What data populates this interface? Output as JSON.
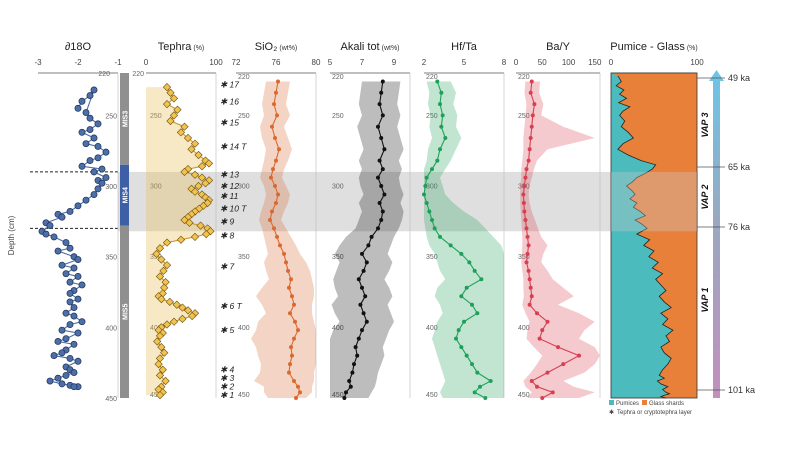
{
  "depth_axis": {
    "label": "Depth (cm)",
    "range": [
      220,
      450
    ],
    "ticks": [
      250,
      300,
      350,
      400,
      450
    ],
    "top_label": "220"
  },
  "mis": [
    {
      "label": "MIS3",
      "range": [
        220,
        285
      ],
      "color": "#8f8f8f"
    },
    {
      "label": "MIS4",
      "range": [
        285,
        328
      ],
      "color": "#3d5fa6"
    },
    {
      "label": "MIS5",
      "range": [
        328,
        450
      ],
      "color": "#8f8f8f"
    }
  ],
  "shaded_band": [
    290,
    332
  ],
  "dashed_lines": [
    290,
    330
  ],
  "chart_data": [
    {
      "type": "line",
      "panel": "d18O",
      "title": "∂18O",
      "xlim": [
        -3,
        -1
      ],
      "xticks": [
        "-3",
        "-2",
        "-1"
      ],
      "color": "#4c6fa8",
      "x": [
        -2.0,
        -1.9,
        -1.7,
        -1.6,
        -1.8,
        -1.7,
        -1.5,
        -1.7,
        -1.9,
        -1.6,
        -1.8,
        -1.5,
        -1.3,
        -1.5,
        -1.7,
        -1.9,
        -1.4,
        -1.6,
        -1.3,
        -1.5,
        -1.4,
        -1.5,
        -1.6,
        -1.8,
        -2.0,
        -2.2,
        -2.5,
        -2.4,
        -2.8,
        -2.7,
        -2.9,
        -2.8,
        -2.6,
        -2.3,
        -2.2,
        -2.5,
        -2.1,
        -2.0,
        -2.4,
        -2.1,
        -2.3,
        -2.0,
        -2.2,
        -1.9,
        -2.1,
        -2.2,
        -2.0,
        -2.2,
        -2.1,
        -2.3,
        -2.1,
        -1.9,
        -2.2,
        -2.4,
        -2.0,
        -2.3,
        -2.5,
        -2.1,
        -2.3,
        -2.4,
        -2.6,
        -2.2,
        -2.0,
        -2.3,
        -2.2,
        -2.1,
        -2.3,
        -2.5,
        -2.7,
        -2.4,
        -2.2,
        -2.0,
        -2.1
      ],
      "y": [
        245,
        240,
        236,
        232,
        248,
        252,
        256,
        260,
        262,
        266,
        270,
        272,
        276,
        280,
        282,
        286,
        288,
        290,
        294,
        296,
        298,
        302,
        306,
        310,
        314,
        318,
        320,
        322,
        326,
        328,
        332,
        334,
        336,
        340,
        344,
        346,
        350,
        352,
        356,
        358,
        362,
        364,
        368,
        370,
        374,
        376,
        380,
        382,
        386,
        390,
        392,
        396,
        398,
        402,
        404,
        408,
        410,
        412,
        416,
        418,
        420,
        422,
        424,
        428,
        430,
        432,
        434,
        436,
        438,
        440,
        441,
        442,
        442
      ]
    },
    {
      "type": "line",
      "panel": "tephra",
      "title": "Tephra",
      "unit": "(%)",
      "xlim": [
        0,
        100
      ],
      "xticks": [
        "0",
        "100"
      ],
      "color": "#e8c15a",
      "x": [
        30,
        35,
        40,
        30,
        45,
        40,
        35,
        55,
        50,
        60,
        70,
        65,
        75,
        85,
        90,
        80,
        60,
        55,
        70,
        80,
        90,
        85,
        75,
        65,
        70,
        80,
        85,
        90,
        88,
        82,
        76,
        70,
        65,
        60,
        55,
        62,
        78,
        88,
        92,
        86,
        70,
        50,
        30,
        20,
        15,
        22,
        30,
        25,
        20,
        28,
        26,
        24,
        18,
        22,
        34,
        44,
        52,
        60,
        70,
        66,
        52,
        40,
        30,
        22,
        18,
        24,
        20,
        16,
        22,
        26,
        20,
        18,
        24,
        20,
        28,
        22,
        18,
        24,
        20
      ],
      "y": [
        230,
        234,
        238,
        242,
        246,
        250,
        254,
        258,
        262,
        266,
        270,
        274,
        278,
        282,
        284,
        286,
        288,
        290,
        292,
        294,
        296,
        298,
        300,
        302,
        304,
        306,
        308,
        310,
        312,
        314,
        316,
        318,
        320,
        322,
        324,
        326,
        328,
        330,
        332,
        334,
        336,
        338,
        340,
        344,
        348,
        352,
        356,
        360,
        364,
        368,
        372,
        376,
        378,
        380,
        382,
        384,
        386,
        388,
        390,
        392,
        394,
        396,
        398,
        400,
        402,
        404,
        406,
        410,
        414,
        418,
        422,
        426,
        430,
        434,
        438,
        442,
        444,
        446,
        448
      ]
    },
    {
      "type": "area",
      "panel": "sio2",
      "title": "SiO₂",
      "unit": "(wt%)",
      "xlim": [
        72,
        80
      ],
      "xticks": [
        "72",
        "76",
        "80"
      ],
      "color": "#d9692f",
      "x": [
        76.2,
        76.0,
        75.8,
        76.1,
        75.6,
        75.9,
        76.3,
        76.0,
        75.7,
        75.5,
        75.9,
        76.2,
        76.0,
        75.6,
        75.4,
        75.8,
        76.1,
        76.4,
        76.8,
        77.0,
        77.2,
        77.5,
        77.3,
        77.6,
        77.8,
        77.4,
        77.9,
        78.2,
        77.8,
        77.5,
        77.6,
        77.4,
        77.3,
        77.8,
        78.2,
        78.4,
        78.0
      ],
      "y": [
        226,
        234,
        242,
        250,
        258,
        266,
        274,
        282,
        288,
        294,
        300,
        306,
        312,
        318,
        324,
        330,
        336,
        342,
        348,
        354,
        360,
        366,
        372,
        378,
        384,
        390,
        396,
        402,
        408,
        414,
        420,
        426,
        432,
        438,
        442,
        446,
        450
      ],
      "band_lo": [
        75.0,
        74.8,
        74.6,
        74.8,
        74.4,
        74.6,
        75.0,
        74.8,
        74.6,
        74.4,
        74.8,
        75.0,
        74.8,
        74.5,
        74.3,
        74.6,
        74.8,
        75.0,
        75.2,
        74.8,
        75.0,
        75.3,
        74.6,
        74.0,
        74.6,
        75.0,
        74.2,
        74.0,
        73.5,
        74.0,
        74.2,
        74.5,
        74.4,
        73.8,
        74.8,
        74.8,
        75.2
      ],
      "band_hi": [
        77.4,
        77.2,
        77.0,
        77.4,
        76.8,
        77.2,
        77.6,
        77.2,
        76.8,
        76.6,
        77.0,
        77.4,
        77.2,
        76.8,
        76.5,
        77.0,
        77.5,
        78.0,
        78.4,
        79.0,
        79.4,
        79.6,
        79.8,
        79.8,
        79.6,
        79.6,
        79.8,
        80.0,
        80.0,
        80.0,
        80.0,
        80.0,
        79.8,
        79.8,
        79.6,
        79.6,
        79.0
      ]
    },
    {
      "type": "area",
      "panel": "alkali",
      "title": "Akali tot",
      "unit": "(wt%)",
      "xlim": [
        5,
        10
      ],
      "xticks": [
        "5",
        "7",
        "9"
      ],
      "color": "#111111",
      "x": [
        8.3,
        8.2,
        8.1,
        8.3,
        8.0,
        8.2,
        8.4,
        8.1,
        8.3,
        8.0,
        8.2,
        8.4,
        8.1,
        8.3,
        8.2,
        8.0,
        7.6,
        7.4,
        7.0,
        7.3,
        7.1,
        6.8,
        7.0,
        7.2,
        6.9,
        7.1,
        7.3,
        7.0,
        6.8,
        6.6,
        6.7,
        6.5,
        6.4,
        6.2,
        6.3,
        6.0,
        5.9
      ],
      "y": [
        226,
        234,
        242,
        250,
        258,
        266,
        274,
        282,
        288,
        294,
        300,
        306,
        312,
        318,
        324,
        330,
        336,
        342,
        348,
        354,
        360,
        366,
        372,
        378,
        384,
        390,
        396,
        402,
        408,
        414,
        420,
        426,
        432,
        438,
        442,
        446,
        450
      ],
      "band_lo": [
        7.0,
        6.9,
        6.8,
        7.0,
        6.7,
        6.9,
        7.1,
        6.8,
        7.0,
        6.8,
        6.9,
        7.1,
        6.8,
        7.0,
        6.8,
        6.6,
        6.0,
        5.6,
        5.3,
        5.6,
        5.4,
        5.2,
        5.3,
        5.5,
        5.1,
        5.3,
        5.6,
        5.2,
        5.0,
        5.0,
        5.0,
        5.0,
        5.0,
        5.0,
        5.0,
        5.0,
        5.0
      ],
      "band_hi": [
        9.4,
        9.3,
        9.2,
        9.4,
        9.2,
        9.4,
        9.6,
        9.3,
        9.5,
        9.3,
        9.4,
        9.6,
        9.4,
        9.6,
        9.5,
        9.3,
        9.0,
        8.8,
        8.6,
        8.9,
        8.7,
        8.4,
        8.7,
        8.9,
        8.6,
        8.8,
        9.0,
        8.7,
        8.5,
        8.3,
        8.4,
        8.2,
        8.0,
        7.9,
        7.8,
        7.6,
        7.4
      ]
    },
    {
      "type": "area",
      "panel": "hfta",
      "title": "Hf/Ta",
      "xlim": [
        2,
        8
      ],
      "xticks": [
        "2",
        "5",
        "8"
      ],
      "color": "#1fa05a",
      "x": [
        3.0,
        3.3,
        3.2,
        3.4,
        3.3,
        3.6,
        3.2,
        3.0,
        2.6,
        2.2,
        2.1,
        2.0,
        2.2,
        2.4,
        2.6,
        2.8,
        3.2,
        4.0,
        4.8,
        5.4,
        5.8,
        6.3,
        5.2,
        4.8,
        5.6,
        6.0,
        5.0,
        4.6,
        4.4,
        4.8,
        5.2,
        5.6,
        6.0,
        7.0,
        6.2,
        5.8,
        6.6
      ],
      "y": [
        226,
        234,
        242,
        250,
        258,
        266,
        274,
        282,
        288,
        294,
        300,
        306,
        312,
        318,
        324,
        330,
        336,
        342,
        348,
        354,
        360,
        366,
        372,
        378,
        384,
        390,
        396,
        402,
        408,
        414,
        420,
        426,
        432,
        438,
        442,
        446,
        450
      ],
      "band_lo": [
        2.2,
        2.4,
        2.3,
        2.5,
        2.4,
        2.6,
        2.3,
        2.2,
        2.0,
        2.0,
        2.0,
        2.0,
        2.0,
        2.0,
        2.0,
        2.1,
        2.2,
        2.4,
        2.8,
        3.0,
        3.2,
        3.6,
        3.0,
        2.8,
        3.2,
        3.4,
        3.0,
        2.8,
        2.6,
        2.8,
        3.0,
        3.2,
        3.4,
        3.6,
        3.4,
        3.2,
        3.4
      ],
      "band_hi": [
        4.0,
        4.4,
        4.2,
        4.5,
        4.4,
        4.8,
        4.4,
        4.0,
        3.6,
        3.2,
        3.4,
        3.6,
        4.2,
        5.0,
        6.0,
        6.6,
        7.2,
        7.8,
        8.0,
        8.0,
        8.0,
        8.0,
        8.0,
        8.0,
        8.0,
        8.0,
        8.0,
        8.0,
        8.0,
        8.0,
        8.0,
        8.0,
        8.0,
        8.0,
        8.0,
        8.0,
        8.0
      ]
    },
    {
      "type": "area",
      "panel": "bay",
      "title": "Ba/Y",
      "xlim": [
        0,
        160
      ],
      "xticks": [
        "0",
        "50",
        "100",
        "150"
      ],
      "color": "#d64050",
      "x": [
        30,
        28,
        35,
        32,
        30,
        28,
        26,
        24,
        20,
        18,
        16,
        14,
        15,
        16,
        18,
        20,
        22,
        24,
        22,
        20,
        24,
        26,
        28,
        30,
        26,
        40,
        60,
        50,
        45,
        80,
        120,
        90,
        60,
        30,
        40,
        70,
        50
      ],
      "y": [
        226,
        234,
        242,
        250,
        258,
        266,
        274,
        282,
        288,
        294,
        300,
        306,
        312,
        318,
        324,
        330,
        336,
        342,
        348,
        354,
        360,
        366,
        372,
        378,
        384,
        390,
        396,
        402,
        408,
        414,
        420,
        426,
        432,
        438,
        442,
        446,
        450
      ],
      "band_lo": [
        18,
        16,
        20,
        18,
        16,
        14,
        14,
        12,
        10,
        10,
        8,
        8,
        8,
        9,
        10,
        11,
        12,
        12,
        11,
        10,
        12,
        14,
        14,
        15,
        12,
        18,
        26,
        22,
        20,
        34,
        50,
        40,
        28,
        14,
        18,
        30,
        22
      ],
      "band_hi": [
        46,
        44,
        52,
        48,
        90,
        150,
        60,
        40,
        34,
        30,
        26,
        24,
        26,
        30,
        36,
        42,
        48,
        60,
        52,
        48,
        60,
        70,
        90,
        110,
        80,
        120,
        150,
        130,
        120,
        150,
        160,
        150,
        130,
        90,
        110,
        150,
        120
      ]
    },
    {
      "type": "area",
      "panel": "pumice",
      "title": "Pumice - Glass",
      "unit": "(%)",
      "xlim": [
        0,
        100
      ],
      "xticks": [
        "0",
        "100"
      ],
      "color": "#e8803a",
      "series": [
        {
          "name": "Pumices",
          "color": "#4bbbbd"
        },
        {
          "name": "Glass shards",
          "color": "#e8803a"
        }
      ],
      "x": [
        8,
        12,
        6,
        15,
        10,
        18,
        9,
        22,
        14,
        10,
        16,
        12,
        20,
        26,
        14,
        8,
        20,
        35,
        52,
        48,
        40,
        30,
        25,
        18,
        24,
        28,
        22,
        30,
        26,
        34,
        40,
        28,
        36,
        42,
        30,
        45,
        38,
        50,
        44,
        55,
        48,
        60,
        52,
        58,
        64,
        56,
        62,
        70,
        58,
        66,
        60,
        72,
        64,
        68,
        58,
        62,
        70,
        66,
        60,
        56,
        62,
        54,
        58,
        66,
        60,
        64,
        68,
        62,
        58,
        64
      ],
      "y": [
        222,
        226,
        229,
        232,
        235,
        238,
        241,
        244,
        247,
        250,
        254,
        258,
        262,
        266,
        270,
        274,
        278,
        282,
        285,
        288,
        291,
        294,
        297,
        300,
        303,
        306,
        309,
        312,
        315,
        318,
        321,
        324,
        327,
        330,
        334,
        338,
        342,
        346,
        350,
        354,
        358,
        362,
        366,
        370,
        374,
        378,
        382,
        386,
        390,
        394,
        398,
        402,
        406,
        410,
        414,
        418,
        422,
        426,
        430,
        434,
        436,
        438,
        440,
        442,
        444,
        446,
        447,
        448,
        449,
        450
      ]
    }
  ],
  "tephra_layers": [
    {
      "label": "17",
      "depth": 228
    },
    {
      "label": "16",
      "depth": 240
    },
    {
      "label": "15",
      "depth": 255
    },
    {
      "label": "14 T",
      "depth": 272
    },
    {
      "label": "13",
      "depth": 292
    },
    {
      "label": "12",
      "depth": 300
    },
    {
      "label": "11",
      "depth": 307
    },
    {
      "label": "10 T",
      "depth": 316
    },
    {
      "label": "9",
      "depth": 325
    },
    {
      "label": "8",
      "depth": 335
    },
    {
      "label": "7",
      "depth": 357
    },
    {
      "label": "6 T",
      "depth": 385
    },
    {
      "label": "5",
      "depth": 402
    },
    {
      "label": "4",
      "depth": 430
    },
    {
      "label": "3",
      "depth": 436
    },
    {
      "label": "2",
      "depth": 442
    },
    {
      "label": "1",
      "depth": 448
    }
  ],
  "vap_labels": [
    "VAP 3",
    "VAP 2",
    "VAP 1"
  ],
  "ages": [
    "49 ka",
    "65 ka",
    "76 ka",
    "101 ka"
  ],
  "legend": {
    "pumices": "Pumices",
    "glass": "Glass shards",
    "tephra": "Tephra or cryptotephra layer"
  }
}
